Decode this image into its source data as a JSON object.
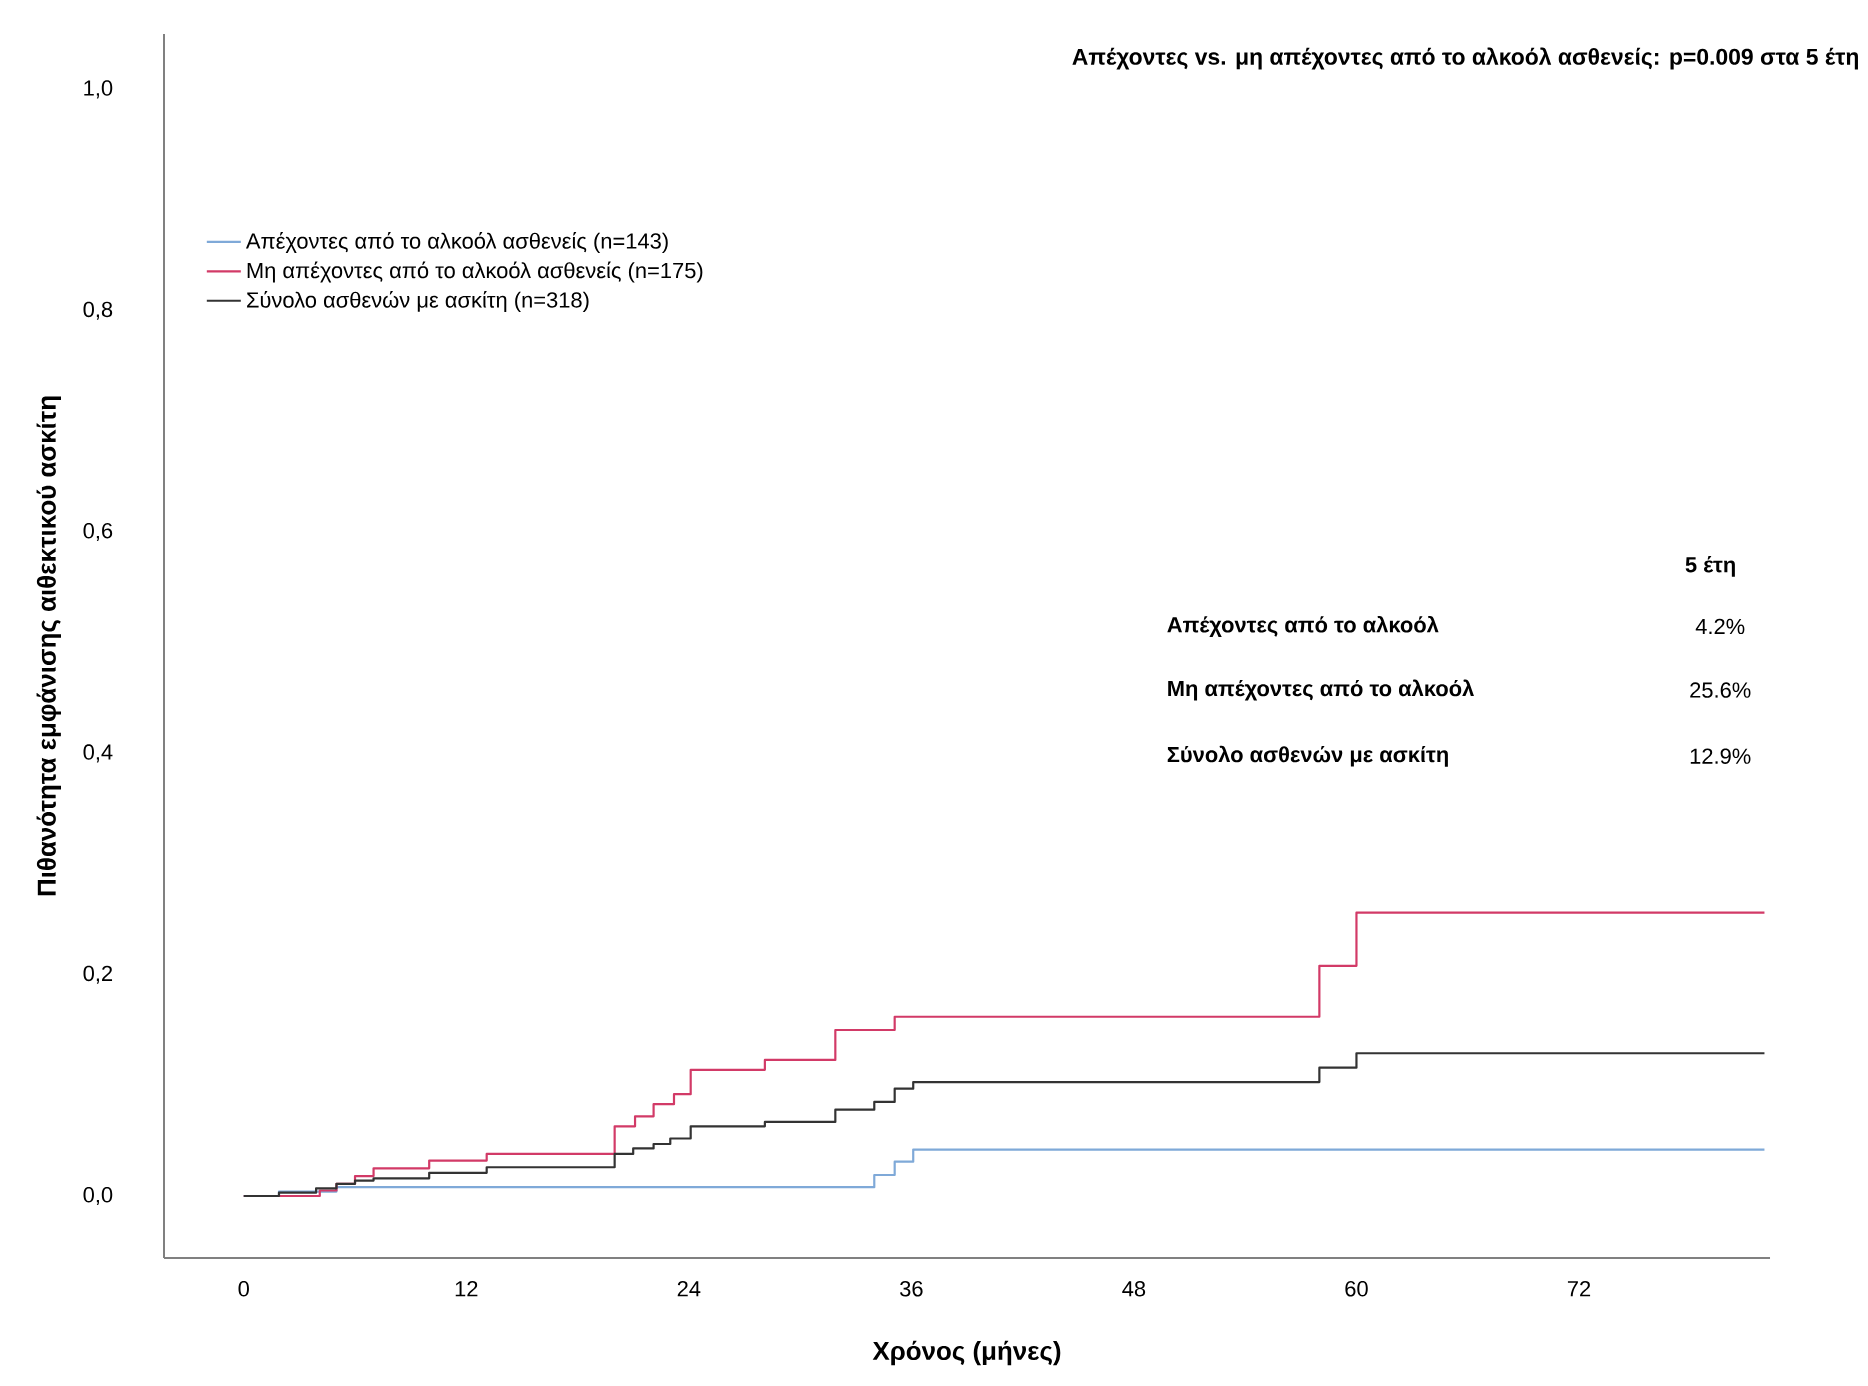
{
  "chart_data": {
    "type": "step",
    "title": "Απέχοντες vs. μη απέχοντες από το αλκοόλ ασθενείς: p=0.009  στα 5 έτη",
    "xlabel": "Χρόνος (μήνες)",
    "ylabel": "Πιθανότητα εμφάνισης αιθεκτικού ασκίτη",
    "series": [
      {
        "name": "Απέχοντες από το αλκοόλ ασθενείς (n=143)",
        "color": "#7fa9d8",
        "x": [
          0,
          1.9,
          5.0,
          34.0,
          35.1,
          36.1,
          82
        ],
        "values": [
          0,
          0.004,
          0.008,
          0.019,
          0.031,
          0.042,
          0.042
        ]
      },
      {
        "name": "Μη απέχοντες από το αλκοόλ ασθενείς (n=175)",
        "color": "#d23a67",
        "x": [
          0,
          4.1,
          5.0,
          6.0,
          7.0,
          10.0,
          13.1,
          20.0,
          21.1,
          22.1,
          23.2,
          24.1,
          28.1,
          31.9,
          35.1,
          58.0,
          60.0,
          82
        ],
        "values": [
          0,
          0.005,
          0.011,
          0.018,
          0.025,
          0.032,
          0.038,
          0.063,
          0.072,
          0.083,
          0.092,
          0.114,
          0.123,
          0.15,
          0.162,
          0.208,
          0.256,
          0.256
        ]
      },
      {
        "name": "Σύνολο ασθενών με ασκίτη (n=318)",
        "color": "#333333",
        "x": [
          0,
          1.9,
          3.9,
          5.0,
          6.0,
          7.0,
          10.0,
          13.1,
          20.0,
          21.0,
          22.1,
          23.0,
          24.1,
          28.1,
          31.9,
          34.0,
          35.1,
          36.1,
          58.0,
          60.0,
          82
        ],
        "values": [
          0,
          0.003,
          0.007,
          0.011,
          0.014,
          0.016,
          0.021,
          0.026,
          0.038,
          0.043,
          0.047,
          0.052,
          0.063,
          0.067,
          0.078,
          0.085,
          0.097,
          0.103,
          0.116,
          0.129,
          0.129
        ]
      }
    ],
    "xlim": [
      -4.3,
      82.3
    ],
    "ylim": [
      -0.056,
      1.05
    ],
    "xticks": [
      0,
      12,
      24,
      36,
      48,
      60,
      72
    ],
    "yticks": [
      {
        "value": 0,
        "label": "0,0"
      },
      {
        "value": 0.2,
        "label": "0,2"
      },
      {
        "value": 0.4,
        "label": "0,4"
      },
      {
        "value": 0.6,
        "label": "0,6"
      },
      {
        "value": 0.8,
        "label": "0,8"
      },
      {
        "value": 1.0,
        "label": "1,0"
      }
    ],
    "legend": "top left",
    "grid": false,
    "annotations": [
      "5 έτη",
      "Απέχοντες από το αλκοόλ",
      "4.2%",
      "Μη απέχοντες από το αλκοόλ",
      "25.6%",
      "Σύνολο ασθενών με ασκίτη",
      "12.9%"
    ]
  }
}
